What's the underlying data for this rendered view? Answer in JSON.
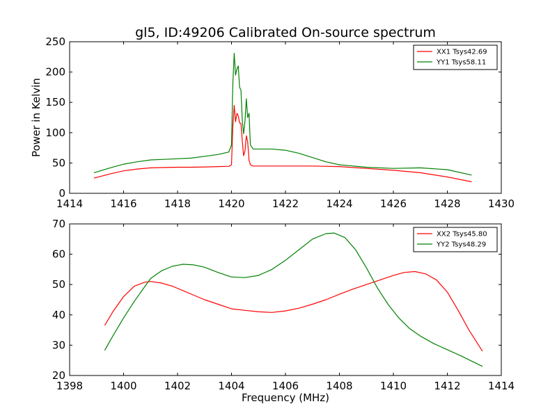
{
  "figure": {
    "title": "gl5, ID:49206 Calibrated On-source spectrum"
  },
  "chart_data": [
    {
      "type": "line",
      "title": "gl5, ID:49206 Calibrated On-source spectrum",
      "xlabel": "",
      "ylabel": "Power in Kelvin",
      "xlim": [
        1414,
        1430
      ],
      "ylim": [
        0,
        250
      ],
      "xticks": [
        1414,
        1416,
        1418,
        1420,
        1422,
        1424,
        1426,
        1428,
        1430
      ],
      "yticks": [
        0,
        50,
        100,
        150,
        200,
        250
      ],
      "grid": false,
      "legend_position": "top-right",
      "series": [
        {
          "name": "XX1 Tsys42.69",
          "color": "#ff0000",
          "x": [
            1414.9,
            1415.5,
            1416.0,
            1416.5,
            1417.0,
            1417.5,
            1418.0,
            1418.5,
            1419.0,
            1419.5,
            1419.9,
            1420.0,
            1420.05,
            1420.1,
            1420.15,
            1420.2,
            1420.25,
            1420.3,
            1420.35,
            1420.4,
            1420.45,
            1420.5,
            1420.55,
            1420.6,
            1420.65,
            1420.7,
            1420.8,
            1421.0,
            1421.5,
            1422.0,
            1423.0,
            1424.0,
            1425.0,
            1426.0,
            1427.0,
            1428.0,
            1428.9
          ],
          "y": [
            25,
            32,
            37,
            40,
            42,
            42.5,
            43,
            43,
            43.5,
            44,
            44.5,
            47,
            110,
            145,
            118,
            132,
            128,
            116,
            115,
            86,
            62,
            70,
            95,
            85,
            55,
            47,
            45,
            45,
            45,
            45,
            45,
            44,
            41,
            38,
            34,
            27,
            19
          ]
        },
        {
          "name": "YY1 Tsys58.11",
          "color": "#008000",
          "x": [
            1414.9,
            1415.5,
            1416.0,
            1416.5,
            1417.0,
            1417.5,
            1418.0,
            1418.5,
            1419.0,
            1419.5,
            1419.9,
            1420.0,
            1420.05,
            1420.1,
            1420.15,
            1420.2,
            1420.25,
            1420.3,
            1420.35,
            1420.4,
            1420.45,
            1420.5,
            1420.55,
            1420.6,
            1420.65,
            1420.7,
            1420.8,
            1421.0,
            1421.5,
            1422.0,
            1422.5,
            1423.0,
            1423.5,
            1424.0,
            1425.0,
            1426.0,
            1427.0,
            1428.0,
            1428.9
          ],
          "y": [
            34,
            42,
            48,
            52,
            55,
            56,
            57,
            58,
            61,
            64,
            68,
            80,
            180,
            231,
            195,
            205,
            210,
            175,
            170,
            120,
            98,
            120,
            156,
            125,
            132,
            80,
            73,
            73,
            73,
            71,
            66,
            59,
            52,
            47,
            43,
            41,
            42,
            39,
            30
          ]
        }
      ]
    },
    {
      "type": "line",
      "title": "",
      "xlabel": "Frequency (MHz)",
      "ylabel": "",
      "xlim": [
        1398,
        1414
      ],
      "ylim": [
        20,
        70
      ],
      "xticks": [
        1398,
        1400,
        1402,
        1404,
        1406,
        1408,
        1410,
        1412,
        1414
      ],
      "yticks": [
        20,
        30,
        40,
        50,
        60,
        70
      ],
      "grid": false,
      "legend_position": "top-right",
      "series": [
        {
          "name": "XX2 Tsys45.80",
          "color": "#ff0000",
          "x": [
            1399.3,
            1399.6,
            1400.0,
            1400.4,
            1400.8,
            1401.0,
            1401.4,
            1401.8,
            1402.2,
            1402.6,
            1403.0,
            1403.5,
            1404.0,
            1404.5,
            1405.0,
            1405.5,
            1406.0,
            1406.5,
            1407.0,
            1407.5,
            1408.0,
            1408.5,
            1409.0,
            1409.5,
            1410.0,
            1410.4,
            1410.8,
            1411.2,
            1411.6,
            1412.0,
            1412.4,
            1412.8,
            1413.3
          ],
          "y": [
            36.5,
            41,
            46,
            49.5,
            50.8,
            51,
            50.5,
            49.5,
            48,
            46.5,
            45,
            43.5,
            42,
            41.5,
            41,
            40.8,
            41.3,
            42.2,
            43.5,
            45,
            46.8,
            48.5,
            50,
            51.5,
            53,
            54,
            54.3,
            53.5,
            51.5,
            47.5,
            41.5,
            35,
            28
          ]
        },
        {
          "name": "YY2 Tsys48.29",
          "color": "#008000",
          "x": [
            1399.3,
            1399.6,
            1400.0,
            1400.4,
            1400.8,
            1401.0,
            1401.4,
            1401.8,
            1402.2,
            1402.6,
            1403.0,
            1403.5,
            1404.0,
            1404.5,
            1405.0,
            1405.5,
            1406.0,
            1406.5,
            1407.0,
            1407.5,
            1407.8,
            1408.2,
            1408.6,
            1409.0,
            1409.4,
            1409.8,
            1410.2,
            1410.6,
            1411.0,
            1411.5,
            1412.0,
            1412.5,
            1413.3
          ],
          "y": [
            28.3,
            33,
            39,
            44.5,
            49.5,
            52,
            54.5,
            56,
            56.7,
            56.5,
            55.7,
            54,
            52.5,
            52.3,
            53,
            55,
            58,
            61.5,
            65,
            66.8,
            67,
            65.5,
            61.5,
            55.5,
            49,
            43.5,
            39,
            35.5,
            33,
            30.5,
            28.5,
            26.5,
            23
          ]
        }
      ]
    }
  ]
}
